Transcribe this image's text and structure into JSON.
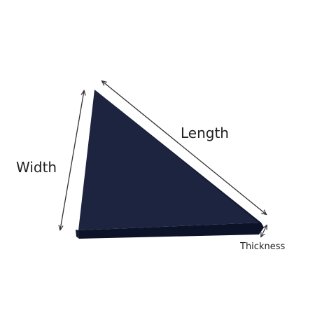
{
  "labels": {
    "length": "Length",
    "width": "Width",
    "thickness": "Thickness"
  },
  "colors": {
    "panel_top": "#1c2440",
    "panel_edge": "#111932",
    "panel_side": "#0c1228",
    "arrow": "#333333",
    "text": "#222222",
    "background": "#ffffff"
  }
}
